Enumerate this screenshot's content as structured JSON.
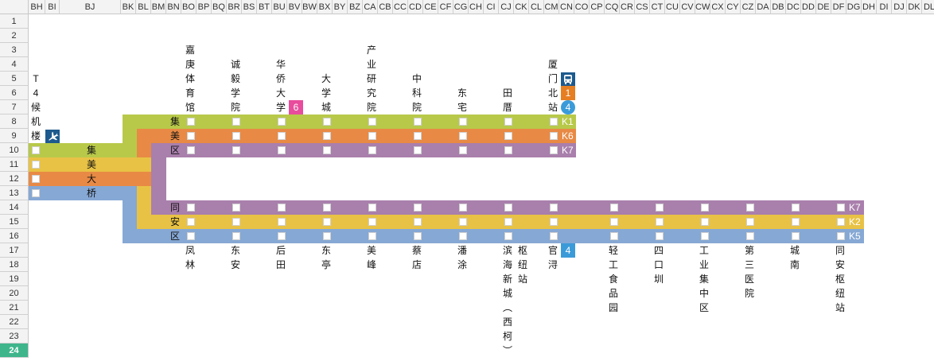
{
  "columns": [
    {
      "label": "BH",
      "w": 21
    },
    {
      "label": "BI",
      "w": 18
    },
    {
      "label": "BJ",
      "w": 77
    },
    {
      "label": "BK",
      "w": 19
    },
    {
      "label": "BL",
      "w": 19
    },
    {
      "label": "BM",
      "w": 19
    },
    {
      "label": "BN",
      "w": 19
    },
    {
      "label": "BO",
      "w": 19
    },
    {
      "label": "BP",
      "w": 19
    },
    {
      "label": "BQ",
      "w": 19
    },
    {
      "label": "BR",
      "w": 19
    },
    {
      "label": "BS",
      "w": 19
    },
    {
      "label": "BT",
      "w": 19
    },
    {
      "label": "BU",
      "w": 19
    },
    {
      "label": "BV",
      "w": 19
    },
    {
      "label": "BW",
      "w": 19
    },
    {
      "label": "BX",
      "w": 19
    },
    {
      "label": "BY",
      "w": 19
    },
    {
      "label": "BZ",
      "w": 19
    },
    {
      "label": "CA",
      "w": 19
    },
    {
      "label": "CB",
      "w": 19
    },
    {
      "label": "CC",
      "w": 19
    },
    {
      "label": "CD",
      "w": 19
    },
    {
      "label": "CE",
      "w": 19
    },
    {
      "label": "CF",
      "w": 19
    },
    {
      "label": "CG",
      "w": 19
    },
    {
      "label": "CH",
      "w": 19
    },
    {
      "label": "CI",
      "w": 19
    },
    {
      "label": "CJ",
      "w": 19
    },
    {
      "label": "CK",
      "w": 19
    },
    {
      "label": "CL",
      "w": 19
    },
    {
      "label": "CM",
      "w": 19
    },
    {
      "label": "CN",
      "w": 19
    },
    {
      "label": "CO",
      "w": 19
    },
    {
      "label": "CP",
      "w": 19
    },
    {
      "label": "CQ",
      "w": 19
    },
    {
      "label": "CR",
      "w": 19
    },
    {
      "label": "CS",
      "w": 19
    },
    {
      "label": "CT",
      "w": 19
    },
    {
      "label": "CU",
      "w": 19
    },
    {
      "label": "CV",
      "w": 19
    },
    {
      "label": "CW",
      "w": 19
    },
    {
      "label": "CX",
      "w": 19
    },
    {
      "label": "CY",
      "w": 19
    },
    {
      "label": "CZ",
      "w": 19
    },
    {
      "label": "DA",
      "w": 19
    },
    {
      "label": "DB",
      "w": 19
    },
    {
      "label": "DC",
      "w": 19
    },
    {
      "label": "DD",
      "w": 19
    },
    {
      "label": "DE",
      "w": 19
    },
    {
      "label": "DF",
      "w": 19
    },
    {
      "label": "DG",
      "w": 19
    },
    {
      "label": "DH",
      "w": 19
    },
    {
      "label": "DI",
      "w": 19
    },
    {
      "label": "DJ",
      "w": 19
    },
    {
      "label": "DK",
      "w": 19
    },
    {
      "label": "DL",
      "w": 19
    }
  ],
  "rows": [
    "1",
    "2",
    "3",
    "4",
    "5",
    "6",
    "7",
    "8",
    "9",
    "10",
    "11",
    "12",
    "13",
    "14",
    "15",
    "16",
    "17",
    "18",
    "19",
    "20",
    "21",
    "22",
    "23",
    "24"
  ],
  "selected_row": "24",
  "colors": {
    "k1": "#b8c94a",
    "k6": "#e88a45",
    "k7": "#a97fac",
    "k2": "#e8c245",
    "k5": "#86a8d4",
    "airport_icon_bg": "#1d5a8e",
    "bus_icon_bg": "#1d5a8e",
    "badge_1": "#e67e22",
    "badge_4": "#3b9bd9",
    "badge_6": "#e84c9c"
  },
  "icons": {
    "airport": "airplane-icon",
    "bus": "bus-icon"
  },
  "left_block": {
    "terminal": "T\n4\n候\n机\n楼",
    "labels": [
      "集",
      "美",
      "大",
      "桥"
    ]
  },
  "upper_section": {
    "district": [
      "集",
      "美",
      "区"
    ],
    "stations": [
      {
        "name": "嘉\n庚\n体\n育\n馆"
      },
      {
        "name": "诚\n毅\n学\n院"
      },
      {
        "name": "华\n侨\n大\n学",
        "badge": "6"
      },
      {
        "name": "大\n学\n城"
      },
      {
        "name": "产\n业\n研\n究\n院"
      },
      {
        "name": "中\n科\n院"
      },
      {
        "name": "东\n宅"
      },
      {
        "name": "田\n厝"
      },
      {
        "name": "厦\n门\n北\n站",
        "badges": [
          "1",
          "4"
        ]
      }
    ],
    "lines": [
      "K1",
      "K6",
      "K7"
    ]
  },
  "lower_section": {
    "district": [
      "同",
      "安",
      "区"
    ],
    "stations": [
      {
        "name": "凤\n林"
      },
      {
        "name": "东\n安"
      },
      {
        "name": "后\n田"
      },
      {
        "name": "东\n亭"
      },
      {
        "name": "美\n峰"
      },
      {
        "name": "蔡\n店"
      },
      {
        "name": "潘\n涂"
      },
      {
        "name": "滨\n海\n新\n城\n︵\n西\n柯\n︶"
      },
      {
        "name": "枢\n纽\n站"
      },
      {
        "name": "官\n浔",
        "badge": "4"
      },
      {
        "name": "轻\n工\n食\n品\n园"
      },
      {
        "name": "四\n口\n圳"
      },
      {
        "name": "工\n业\n集\n中\n区"
      },
      {
        "name": "第\n三\n医\n院"
      },
      {
        "name": "城\n南"
      },
      {
        "name": "同\n安\n枢\n纽\n站"
      }
    ],
    "lines": [
      "K7",
      "K2",
      "K5"
    ]
  }
}
